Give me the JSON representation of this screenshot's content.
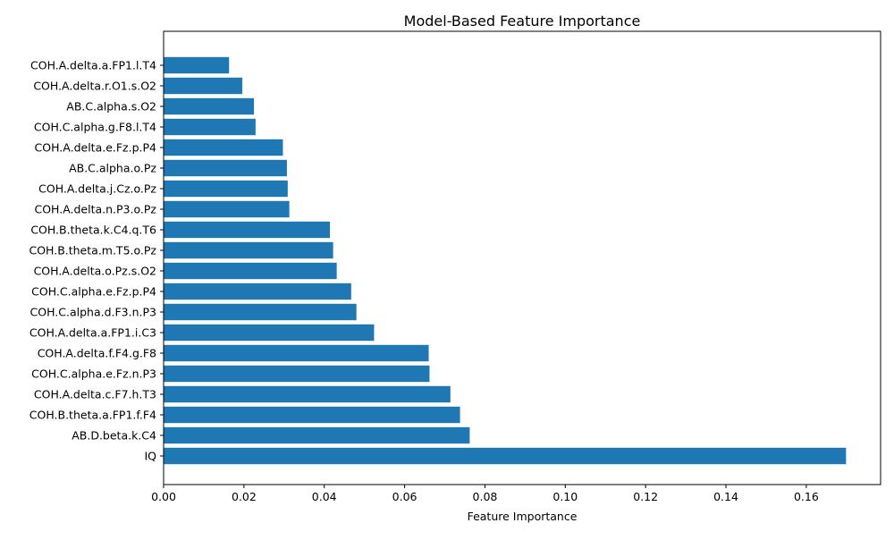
{
  "chart_data": {
    "type": "bar",
    "orientation": "horizontal",
    "title": "Model-Based Feature Importance",
    "xlabel": "Feature Importance",
    "ylabel": "",
    "xlim": [
      0,
      0.1785
    ],
    "xticks": [
      0.0,
      0.02,
      0.04,
      0.06,
      0.08,
      0.1,
      0.12,
      0.14,
      0.16
    ],
    "xtick_labels": [
      "0.00",
      "0.02",
      "0.04",
      "0.06",
      "0.08",
      "0.10",
      "0.12",
      "0.14",
      "0.16"
    ],
    "grid": false,
    "bar_color": "#1f77b4",
    "categories": [
      "IQ",
      "AB.D.beta.k.C4",
      "COH.B.theta.a.FP1.f.F4",
      "COH.A.delta.c.F7.h.T3",
      "COH.C.alpha.e.Fz.n.P3",
      "COH.A.delta.f.F4.g.F8",
      "COH.A.delta.a.FP1.i.C3",
      "COH.C.alpha.d.F3.n.P3",
      "COH.C.alpha.e.Fz.p.P4",
      "COH.A.delta.o.Pz.s.O2",
      "COH.B.theta.m.T5.o.Pz",
      "COH.B.theta.k.C4.q.T6",
      "COH.A.delta.n.P3.o.Pz",
      "COH.A.delta.j.Cz.o.Pz",
      "AB.C.alpha.o.Pz",
      "COH.A.delta.e.Fz.p.P4",
      "COH.C.alpha.g.F8.l.T4",
      "AB.C.alpha.s.O2",
      "COH.A.delta.r.O1.s.O2",
      "COH.A.delta.a.FP1.l.T4"
    ],
    "values": [
      0.1699,
      0.0762,
      0.0738,
      0.0714,
      0.0662,
      0.066,
      0.0524,
      0.048,
      0.0467,
      0.0431,
      0.0422,
      0.0414,
      0.0313,
      0.0309,
      0.0307,
      0.0297,
      0.0229,
      0.0225,
      0.0196,
      0.0163
    ]
  }
}
